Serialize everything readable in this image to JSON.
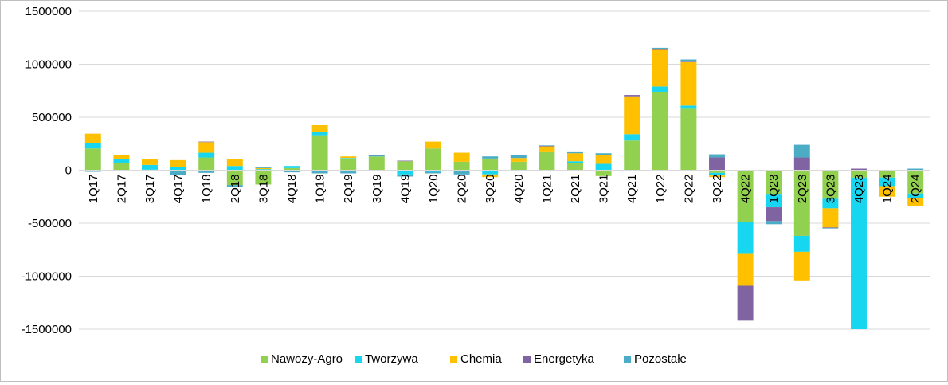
{
  "chart_data": {
    "type": "bar",
    "stacked": true,
    "title": "",
    "xlabel": "",
    "ylabel": "",
    "ylim": [
      -1500000,
      1500000
    ],
    "yticks": [
      "1500000",
      "1000000",
      "500000",
      "0",
      "-500000",
      "-1000000",
      "-1500000"
    ],
    "ytick_values": [
      1500000,
      1000000,
      500000,
      0,
      -500000,
      -1000000,
      -1500000
    ],
    "grid": true,
    "legend_position": "bottom",
    "categories": [
      "1Q17",
      "2Q17",
      "3Q17",
      "4Q17",
      "1Q18",
      "2Q18",
      "3Q18",
      "4Q18",
      "1Q19",
      "2Q19",
      "3Q19",
      "4Q19",
      "1Q20",
      "2Q20",
      "3Q20",
      "4Q20",
      "1Q21",
      "2Q21",
      "3Q21",
      "4Q21",
      "1Q22",
      "2Q22",
      "3Q22",
      "4Q22",
      "1Q23",
      "2Q23",
      "3Q23",
      "4Q23",
      "1Q24",
      "2Q24"
    ],
    "series": [
      {
        "name": "Nawozy-Agro",
        "color": "#92d050",
        "values": [
          205000,
          65000,
          5000,
          -5000,
          120000,
          -140000,
          -135000,
          20000,
          330000,
          110000,
          130000,
          85000,
          205000,
          80000,
          110000,
          80000,
          170000,
          70000,
          -55000,
          280000,
          735000,
          580000,
          -25000,
          -490000,
          -230000,
          -620000,
          -270000,
          -70000,
          -70000,
          -220000
        ]
      },
      {
        "name": "Tworzywa",
        "color": "#17d7f0",
        "values": [
          50000,
          40000,
          45000,
          30000,
          45000,
          40000,
          10000,
          20000,
          30000,
          5000,
          5000,
          -40000,
          -15000,
          -10000,
          -40000,
          -10000,
          -5000,
          15000,
          60000,
          60000,
          55000,
          30000,
          -25000,
          -300000,
          -120000,
          -150000,
          -90000,
          -1430000,
          -80000,
          -40000
        ]
      },
      {
        "name": "Chemia",
        "color": "#ffc000",
        "values": [
          90000,
          40000,
          55000,
          65000,
          100000,
          65000,
          10000,
          0,
          65000,
          15000,
          0,
          0,
          65000,
          85000,
          -25000,
          35000,
          55000,
          75000,
          85000,
          350000,
          345000,
          410000,
          -15000,
          -300000,
          0,
          -270000,
          -180000,
          0,
          -100000,
          -80000
        ]
      },
      {
        "name": "Energetyka",
        "color": "#8064a2",
        "values": [
          0,
          0,
          0,
          0,
          5000,
          0,
          0,
          0,
          0,
          0,
          5000,
          5000,
          0,
          0,
          0,
          0,
          5000,
          0,
          0,
          20000,
          5000,
          5000,
          120000,
          -330000,
          -130000,
          120000,
          -5000,
          15000,
          0,
          0
        ]
      },
      {
        "name": "Pozostałe",
        "color": "#4bacc6",
        "values": [
          -15000,
          -10000,
          0,
          -40000,
          -25000,
          -20000,
          10000,
          -20000,
          -30000,
          -30000,
          5000,
          -20000,
          -15000,
          -30000,
          20000,
          25000,
          5000,
          10000,
          15000,
          -10000,
          15000,
          20000,
          30000,
          0,
          -30000,
          120000,
          -5000,
          0,
          0,
          15000
        ]
      }
    ]
  }
}
